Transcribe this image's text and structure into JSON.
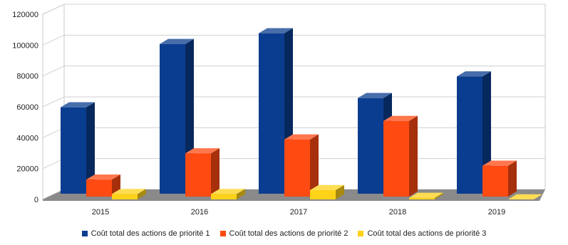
{
  "chart_data": {
    "type": "bar",
    "categories": [
      "2015",
      "2016",
      "2017",
      "2018",
      "2019"
    ],
    "series": [
      {
        "name": "Coût total des actions de priorité 1",
        "values": [
          56000,
          97000,
          104000,
          62000,
          76000
        ],
        "color": "#0a3d8f"
      },
      {
        "name": "Coût total des actions de priorité 2",
        "values": [
          11000,
          28000,
          37000,
          49000,
          20000
        ],
        "color": "#ff4a12"
      },
      {
        "name": "Coût total des actions de priorité 3",
        "values": [
          3500,
          3500,
          6000,
          1000,
          0
        ],
        "color": "#ffd21a"
      }
    ],
    "y_ticks": [
      "0",
      "20000",
      "40000",
      "60000",
      "80000",
      "100000",
      "120000"
    ],
    "ylim": [
      0,
      120000
    ],
    "grid": true,
    "legend_position": "bottom",
    "style": "3d-column"
  }
}
